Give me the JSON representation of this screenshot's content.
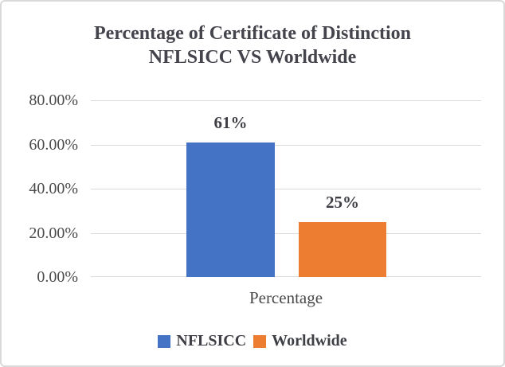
{
  "chart": {
    "title_line1": "Percentage of Certificate of Distinction",
    "title_line2": "NFLSICC VS Worldwide",
    "xlabel": "Percentage"
  },
  "chart_data": {
    "type": "bar",
    "title": "Percentage of Certificate of Distinction NFLSICC VS Worldwide",
    "categories": [
      "Percentage"
    ],
    "series": [
      {
        "name": "NFLSICC",
        "values": [
          0.61
        ],
        "color": "#4472C4",
        "data_label": "61%"
      },
      {
        "name": "Worldwide",
        "values": [
          0.25
        ],
        "color": "#ED7D31",
        "data_label": "25%"
      }
    ],
    "ylim": [
      0,
      0.8
    ],
    "yticks": [
      {
        "value": 0.8,
        "label": "80.00%"
      },
      {
        "value": 0.6,
        "label": "60.00%"
      },
      {
        "value": 0.4,
        "label": "40.00%"
      },
      {
        "value": 0.2,
        "label": "20.00%"
      },
      {
        "value": 0.0,
        "label": "0.00%"
      }
    ],
    "grid": true,
    "gridline_color": "#d9d9d9",
    "legend_position": "bottom",
    "legend": [
      "NFLSICC",
      "Worldwide"
    ]
  }
}
